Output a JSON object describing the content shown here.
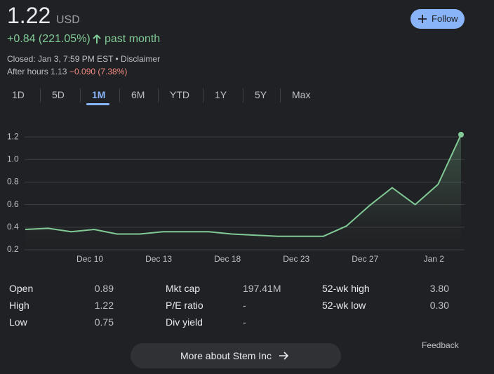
{
  "header": {
    "price": "1.22",
    "currency": "USD",
    "change": "+0.84 (221.05%)",
    "period": "past month",
    "closed": "Closed: Jan 3, 7:59 PM EST • Disclaimer",
    "after_hours": "After hours 1.13",
    "after_hours_change": "−0.090 (7.38%)"
  },
  "follow": "Follow",
  "tabs": [
    "1D",
    "5D",
    "1M",
    "6M",
    "YTD",
    "1Y",
    "5Y",
    "Max"
  ],
  "selected_tab": 2,
  "chart_data": {
    "type": "line",
    "categories": [
      null,
      null,
      null,
      "Dec 10",
      null,
      null,
      "Dec 13",
      null,
      null,
      "Dec 18",
      null,
      null,
      "Dec 23",
      null,
      null,
      "Dec 27",
      null,
      null,
      "Jan 2",
      null
    ],
    "values": [
      0.38,
      0.39,
      0.36,
      0.38,
      0.34,
      0.34,
      0.36,
      0.36,
      0.36,
      0.34,
      0.33,
      0.32,
      0.32,
      0.32,
      0.41,
      0.59,
      0.75,
      0.6,
      0.78,
      1.22
    ],
    "color": "#81c995",
    "ylim": [
      0.2,
      1.3
    ],
    "yticks": [
      0.2,
      0.4,
      0.6,
      0.8,
      {
        "value": 1,
        "label": "1.0"
      },
      1.2
    ],
    "grid": true
  },
  "stats": [
    [
      {
        "label": "Open",
        "value": "0.89"
      },
      {
        "label": "High",
        "value": "1.22"
      },
      {
        "label": "Low",
        "value": "0.75"
      }
    ],
    [
      {
        "label": "Mkt cap",
        "value": "197.41M"
      },
      {
        "label": "P/E ratio",
        "value": "-"
      },
      {
        "label": "Div yield",
        "value": "-"
      }
    ],
    [
      {
        "label": "52-wk high",
        "value": "3.80"
      },
      {
        "label": "52-wk low",
        "value": "0.30"
      }
    ]
  ],
  "feedback": "Feedback",
  "more": "More about Stem Inc"
}
